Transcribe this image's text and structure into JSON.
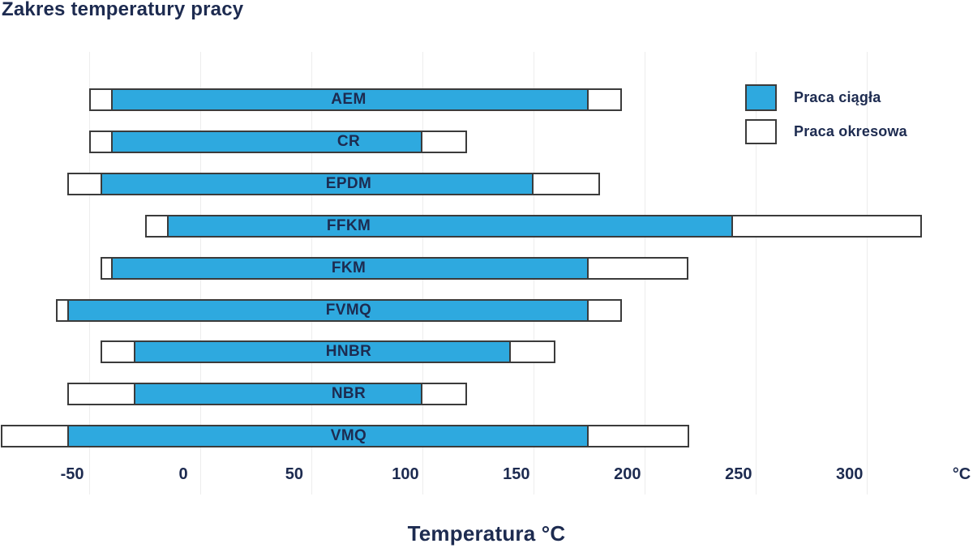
{
  "chart_data": {
    "type": "bar",
    "orientation": "horizontal",
    "title": "Zakres temperatury pracy",
    "xlabel": "Temperatura °C",
    "x_unit_label": "°C",
    "unit": "°C",
    "xticks": [
      -50,
      0,
      50,
      100,
      150,
      200,
      250,
      300
    ],
    "xlim": [
      -92,
      348
    ],
    "grid": "vertical-faint",
    "legend_position": "top-right",
    "legend": [
      "Praca ciągła",
      "Praca okresowa"
    ],
    "series": [
      {
        "name": "AEM",
        "continuous": [
          -40,
          175
        ],
        "intermittent": [
          -50,
          190
        ]
      },
      {
        "name": "CR",
        "continuous": [
          -40,
          100
        ],
        "intermittent": [
          -50,
          120
        ]
      },
      {
        "name": "EPDM",
        "continuous": [
          -45,
          150
        ],
        "intermittent": [
          -60,
          180
        ]
      },
      {
        "name": "FFKM",
        "continuous": [
          -15,
          240
        ],
        "intermittent": [
          -25,
          325
        ]
      },
      {
        "name": "FKM",
        "continuous": [
          -40,
          175
        ],
        "intermittent": [
          -45,
          220
        ]
      },
      {
        "name": "FVMQ",
        "continuous": [
          -60,
          175
        ],
        "intermittent": [
          -65,
          190
        ]
      },
      {
        "name": "HNBR",
        "continuous": [
          -30,
          140
        ],
        "intermittent": [
          -45,
          160
        ]
      },
      {
        "name": "NBR",
        "continuous": [
          -30,
          100
        ],
        "intermittent": [
          -60,
          120
        ]
      },
      {
        "name": "VMQ",
        "continuous": [
          -60,
          175
        ],
        "intermittent": [
          -90,
          220
        ]
      }
    ],
    "colors": {
      "continuous_fill": "#2ea9df",
      "intermittent_fill": "#ffffff",
      "bar_border": "#3b3b3b",
      "text": "#1d2b50",
      "gridline": "#ededed",
      "background": "#ffffff"
    }
  }
}
